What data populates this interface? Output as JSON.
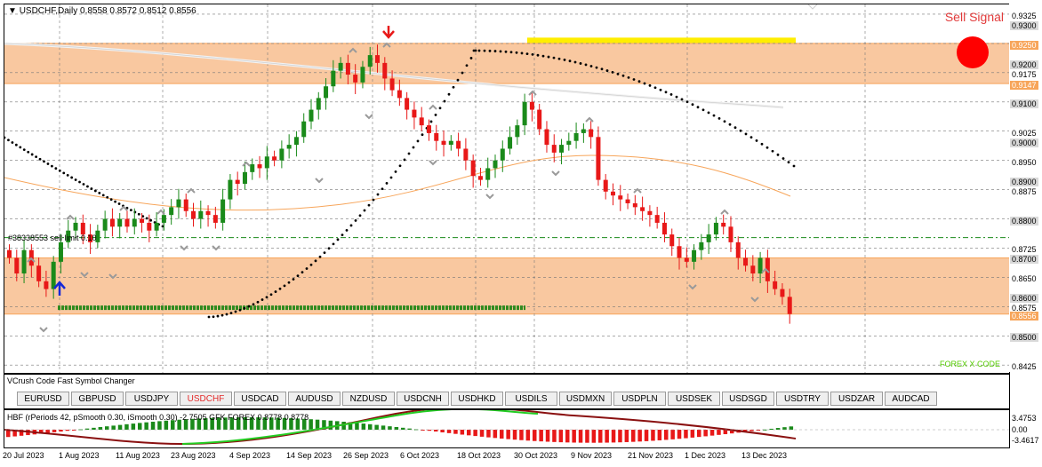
{
  "window": {
    "symbol_title": "USDCHF,Daily  0.8558 0.8572 0.8512 0.8556"
  },
  "signal": {
    "label": "Sell Signal",
    "color": "#e23b3b"
  },
  "trade_label": "#38338553 sell limit 0.10",
  "watermark": "FOREX X CODE",
  "price_axis": {
    "labels": [
      "0.9325",
      "0.9300",
      "0.9250",
      "0.9200",
      "0.9175",
      "0.9147",
      "0.9100",
      "0.9025",
      "0.9000",
      "0.8950",
      "0.8900",
      "0.8875",
      "0.8800",
      "0.8725",
      "0.8700",
      "0.8650",
      "0.8600",
      "0.8575",
      "0.8556",
      "0.8500",
      "0.8425"
    ]
  },
  "symbol_changer": {
    "title": "VCrush Code Fast Symbol Changer",
    "buttons": [
      "EURUSD",
      "GBPUSD",
      "USDJPY",
      "USDCHF",
      "USDCAD",
      "AUDUSD",
      "NZDUSD",
      "USDCNH",
      "USDHKD",
      "USDILS",
      "USDMXN",
      "USDPLN",
      "USDSEK",
      "USDSGD",
      "USDTRY",
      "USDZAR",
      "AUDCAD"
    ],
    "active": "USDCHF"
  },
  "indicator": {
    "title": "HBF  (rPeriods 42, pSmooth 0.30, iSmooth 0.30)  -2.7505  GFK FOREX 0.8778 0.8778",
    "axis_labels": [
      "3.4753",
      "0.00",
      "-3.4617"
    ]
  },
  "date_axis": {
    "labels": [
      "20 Jul 2023",
      "1 Aug 2023",
      "11 Aug 2023",
      "23 Aug 2023",
      "4 Sep 2023",
      "14 Sep 2023",
      "26 Sep 2023",
      "6 Oct 2023",
      "18 Oct 2023",
      "30 Oct 2023",
      "9 Nov 2023",
      "21 Nov 2023",
      "1 Dec 2023",
      "13 Dec 2023"
    ]
  },
  "colors": {
    "bull": "#1a8a1a",
    "bear": "#e81818",
    "zone": "#f9c8a0",
    "zone_line": "#f7a55a",
    "active_symbol": "#e32b2b"
  },
  "chart_data": {
    "type": "candlestick",
    "symbol": "USDCHF",
    "timeframe": "Daily",
    "ylim": [
      0.8405,
      0.935
    ],
    "current": {
      "open": 0.8558,
      "high": 0.8572,
      "low": 0.8512,
      "close": 0.8556
    },
    "zones": [
      [
        0.9147,
        0.925
      ],
      [
        0.8556,
        0.87
      ]
    ],
    "closes": [
      0.87,
      0.866,
      0.872,
      0.868,
      0.864,
      0.862,
      0.869,
      0.874,
      0.877,
      0.879,
      0.876,
      0.874,
      0.877,
      0.88,
      0.878,
      0.88,
      0.878,
      0.88,
      0.879,
      0.877,
      0.879,
      0.881,
      0.883,
      0.885,
      0.882,
      0.88,
      0.882,
      0.881,
      0.879,
      0.885,
      0.89,
      0.889,
      0.892,
      0.894,
      0.893,
      0.896,
      0.895,
      0.898,
      0.899,
      0.901,
      0.905,
      0.908,
      0.911,
      0.914,
      0.918,
      0.92,
      0.917,
      0.915,
      0.919,
      0.922,
      0.92,
      0.916,
      0.913,
      0.911,
      0.908,
      0.906,
      0.904,
      0.902,
      0.9,
      0.899,
      0.9,
      0.898,
      0.895,
      0.891,
      0.89,
      0.893,
      0.895,
      0.898,
      0.901,
      0.904,
      0.91,
      0.908,
      0.903,
      0.899,
      0.897,
      0.899,
      0.9,
      0.902,
      0.903,
      0.901,
      0.89,
      0.887,
      0.886,
      0.885,
      0.884,
      0.883,
      0.882,
      0.881,
      0.879,
      0.876,
      0.873,
      0.87,
      0.869,
      0.872,
      0.874,
      0.876,
      0.879,
      0.878,
      0.874,
      0.87,
      0.868,
      0.866,
      0.87,
      0.864,
      0.862,
      0.86,
      0.8556
    ]
  }
}
